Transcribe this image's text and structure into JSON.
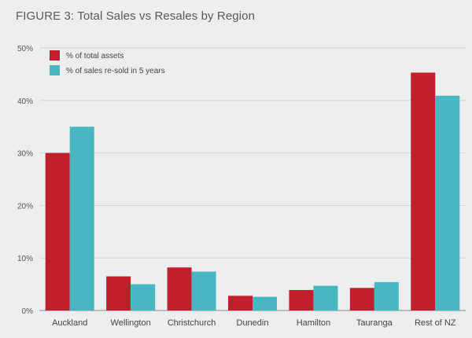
{
  "title": "FIGURE 3: Total Sales vs Resales by Region",
  "chart_data": {
    "type": "bar",
    "title": "FIGURE 3: Total Sales vs Resales by Region",
    "xlabel": "",
    "ylabel": "",
    "categories": [
      "Auckland",
      "Wellington",
      "Christchurch",
      "Dunedin",
      "Hamilton",
      "Tauranga",
      "Rest of NZ"
    ],
    "series": [
      {
        "name": "% of total assets",
        "color": "#c11f2e",
        "values": [
          30,
          6.5,
          8.2,
          2.8,
          3.9,
          4.3,
          45.3
        ]
      },
      {
        "name": "% of sales re-sold in 5 years",
        "color": "#47b8c1",
        "values": [
          35,
          5,
          7.4,
          2.6,
          4.7,
          5.4,
          40.9
        ]
      }
    ],
    "ylim": [
      0,
      50
    ],
    "yticks": [
      "0%",
      "10%",
      "20%",
      "30%",
      "40%",
      "50%"
    ],
    "grid": true,
    "legend_position": "top-left"
  }
}
